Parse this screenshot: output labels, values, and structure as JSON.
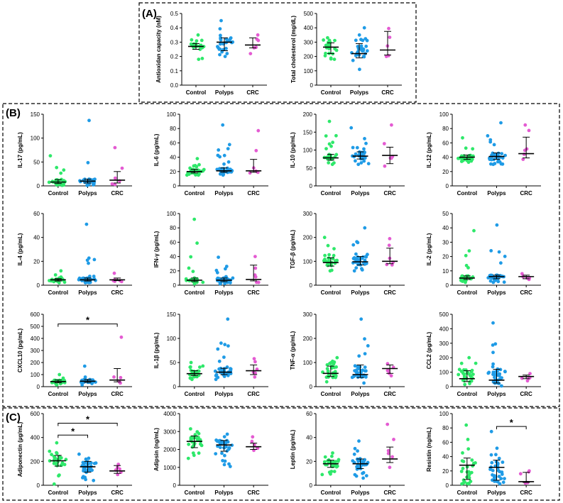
{
  "panels": [
    {
      "id": "A",
      "label": "(A)"
    },
    {
      "id": "B",
      "label": "(B)"
    },
    {
      "id": "C",
      "label": "(C)"
    }
  ],
  "colors": {
    "Control": "#2ee86a",
    "Polyps": "#1f9be6",
    "CRC": "#e45bd2"
  },
  "chart_data": [
    {
      "type": "scatter",
      "panel": "A",
      "ylabel": "Antioxidan capacity (nM)",
      "categories": [
        "Control",
        "Polyps",
        "CRC"
      ],
      "ylim": [
        0,
        0.5
      ],
      "yticks": [
        "0.0",
        "0.1",
        "0.2",
        "0.3",
        "0.4",
        "0.5"
      ],
      "median": [
        0.27,
        0.3,
        0.28
      ],
      "q1": [
        0.25,
        0.24,
        0.26
      ],
      "q3": [
        0.29,
        0.33,
        0.33
      ],
      "min": [
        0.18,
        0.2,
        0.22
      ],
      "max": [
        0.35,
        0.45,
        0.35
      ],
      "n": [
        22,
        26,
        6
      ],
      "significance": []
    },
    {
      "type": "scatter",
      "panel": "A",
      "ylabel": "Total cholesterol (mg/dL)",
      "categories": [
        "Control",
        "Polyps",
        "CRC"
      ],
      "ylim": [
        0,
        500
      ],
      "yticks": [
        "0",
        "100",
        "200",
        "300",
        "400",
        "500"
      ],
      "median": [
        265,
        220,
        245
      ],
      "q1": [
        220,
        190,
        210
      ],
      "q3": [
        295,
        290,
        375
      ],
      "min": [
        180,
        110,
        200
      ],
      "max": [
        330,
        400,
        395
      ],
      "n": [
        22,
        30,
        5
      ],
      "significance": []
    },
    {
      "type": "scatter",
      "panel": "B",
      "ylabel": "IL-17 (pg/mL)",
      "categories": [
        "Control",
        "Polyps",
        "CRC"
      ],
      "ylim": [
        0,
        150
      ],
      "yticks": [
        "0",
        "50",
        "100",
        "150"
      ],
      "median": [
        8,
        10,
        12
      ],
      "q1": [
        5,
        6,
        6
      ],
      "q3": [
        13,
        14,
        30
      ],
      "min": [
        1,
        1,
        3
      ],
      "max": [
        63,
        137,
        80
      ],
      "n": [
        28,
        36,
        6
      ],
      "significance": []
    },
    {
      "type": "scatter",
      "panel": "B",
      "ylabel": "IL-6 (pg/mL)",
      "categories": [
        "Control",
        "Polyps",
        "CRC"
      ],
      "ylim": [
        0,
        100
      ],
      "yticks": [
        "0",
        "20",
        "40",
        "60",
        "80",
        "100"
      ],
      "median": [
        20,
        21,
        21
      ],
      "q1": [
        18,
        19,
        19
      ],
      "q3": [
        23,
        25,
        37
      ],
      "min": [
        15,
        15,
        18
      ],
      "max": [
        38,
        85,
        77
      ],
      "n": [
        28,
        36,
        6
      ],
      "significance": []
    },
    {
      "type": "scatter",
      "panel": "B",
      "ylabel": "IL-10 (pg/mL)",
      "categories": [
        "Control",
        "Polyps",
        "CRC"
      ],
      "ylim": [
        0,
        200
      ],
      "yticks": [
        "0",
        "50",
        "100",
        "150",
        "200"
      ],
      "median": [
        78,
        83,
        85
      ],
      "q1": [
        72,
        75,
        62
      ],
      "q3": [
        88,
        95,
        108
      ],
      "min": [
        60,
        60,
        55
      ],
      "max": [
        180,
        162,
        170
      ],
      "n": [
        28,
        36,
        6
      ],
      "significance": []
    },
    {
      "type": "scatter",
      "panel": "B",
      "ylabel": "IL-12 (pg/mL)",
      "categories": [
        "Control",
        "Polyps",
        "CRC"
      ],
      "ylim": [
        0,
        100
      ],
      "yticks": [
        "0",
        "20",
        "40",
        "60",
        "80",
        "100"
      ],
      "median": [
        40,
        41,
        45
      ],
      "q1": [
        37,
        37,
        39
      ],
      "q3": [
        43,
        46,
        68
      ],
      "min": [
        33,
        30,
        37
      ],
      "max": [
        67,
        88,
        85
      ],
      "n": [
        28,
        36,
        6
      ],
      "significance": []
    },
    {
      "type": "scatter",
      "panel": "B",
      "ylabel": "IL-4 (pg/mL)",
      "categories": [
        "Control",
        "Polyps",
        "CRC"
      ],
      "ylim": [
        0,
        60
      ],
      "yticks": [
        "0",
        "20",
        "40",
        "60"
      ],
      "median": [
        4.5,
        4.5,
        4.5
      ],
      "q1": [
        3.5,
        3.5,
        3.8
      ],
      "q3": [
        5.5,
        6,
        6
      ],
      "min": [
        2,
        2,
        3
      ],
      "max": [
        12,
        51,
        10
      ],
      "n": [
        28,
        36,
        6
      ],
      "significance": []
    },
    {
      "type": "scatter",
      "panel": "B",
      "ylabel": "IFN-γ (pg/mL)",
      "categories": [
        "Control",
        "Polyps",
        "CRC"
      ],
      "ylim": [
        0,
        100
      ],
      "yticks": [
        "0",
        "20",
        "40",
        "60",
        "80",
        "100"
      ],
      "median": [
        7,
        7,
        8
      ],
      "q1": [
        5,
        5,
        6
      ],
      "q3": [
        10,
        10,
        28
      ],
      "min": [
        2,
        2,
        4
      ],
      "max": [
        92,
        39,
        40
      ],
      "n": [
        28,
        36,
        6
      ],
      "significance": []
    },
    {
      "type": "scatter",
      "panel": "B",
      "ylabel": "TGF-β (pg/mL)",
      "categories": [
        "Control",
        "Polyps",
        "CRC"
      ],
      "ylim": [
        0,
        300
      ],
      "yticks": [
        "0",
        "100",
        "200",
        "300"
      ],
      "median": [
        95,
        98,
        100
      ],
      "q1": [
        80,
        85,
        90
      ],
      "q3": [
        115,
        120,
        155
      ],
      "min": [
        60,
        60,
        85
      ],
      "max": [
        200,
        240,
        195
      ],
      "n": [
        28,
        36,
        6
      ],
      "significance": []
    },
    {
      "type": "scatter",
      "panel": "B",
      "ylabel": "IL-2 (pg/mL)",
      "categories": [
        "Control",
        "Polyps",
        "CRC"
      ],
      "ylim": [
        0,
        50
      ],
      "yticks": [
        "0",
        "10",
        "20",
        "30",
        "40",
        "50"
      ],
      "median": [
        5,
        6,
        6
      ],
      "q1": [
        4,
        4.5,
        4.5
      ],
      "q3": [
        6.5,
        7,
        7
      ],
      "min": [
        2,
        2,
        4
      ],
      "max": [
        38,
        42,
        8
      ],
      "n": [
        28,
        36,
        6
      ],
      "significance": []
    },
    {
      "type": "scatter",
      "panel": "B",
      "ylabel": "CXCL10 (pg/mL)",
      "categories": [
        "Control",
        "Polyps",
        "CRC"
      ],
      "ylim": [
        0,
        600
      ],
      "yticks": [
        "0",
        "100",
        "200",
        "300",
        "400",
        "500",
        "600"
      ],
      "median": [
        42,
        45,
        55
      ],
      "q1": [
        32,
        35,
        40
      ],
      "q3": [
        55,
        60,
        150
      ],
      "min": [
        15,
        15,
        30
      ],
      "max": [
        100,
        170,
        410
      ],
      "n": [
        28,
        36,
        6
      ],
      "significance": [
        {
          "from": 0,
          "to": 2,
          "y": 520,
          "label": "*"
        }
      ]
    },
    {
      "type": "scatter",
      "panel": "B",
      "ylabel": "IL-1β (pg/mL)",
      "categories": [
        "Control",
        "Polyps",
        "CRC"
      ],
      "ylim": [
        0,
        150
      ],
      "yticks": [
        "0",
        "50",
        "100",
        "150"
      ],
      "median": [
        27,
        30,
        33
      ],
      "q1": [
        23,
        25,
        25
      ],
      "q3": [
        33,
        38,
        45
      ],
      "min": [
        15,
        15,
        20
      ],
      "max": [
        50,
        140,
        58
      ],
      "n": [
        28,
        36,
        6
      ],
      "significance": []
    },
    {
      "type": "scatter",
      "panel": "B",
      "ylabel": "TNF-α (pg/mL)",
      "categories": [
        "Control",
        "Polyps",
        "CRC"
      ],
      "ylim": [
        0,
        300
      ],
      "yticks": [
        "0",
        "100",
        "200",
        "300"
      ],
      "median": [
        55,
        50,
        75
      ],
      "q1": [
        42,
        38,
        55
      ],
      "q3": [
        85,
        90,
        90
      ],
      "min": [
        20,
        15,
        45
      ],
      "max": [
        120,
        280,
        95
      ],
      "n": [
        28,
        36,
        6
      ],
      "significance": []
    },
    {
      "type": "scatter",
      "panel": "B",
      "ylabel": "CCL2 (pg/mL)",
      "categories": [
        "Control",
        "Polyps",
        "CRC"
      ],
      "ylim": [
        0,
        500
      ],
      "yticks": [
        "0",
        "100",
        "200",
        "300",
        "400",
        "500"
      ],
      "median": [
        55,
        45,
        70
      ],
      "q1": [
        35,
        25,
        55
      ],
      "q3": [
        110,
        120,
        80
      ],
      "min": [
        15,
        5,
        40
      ],
      "max": [
        200,
        440,
        90
      ],
      "n": [
        28,
        36,
        6
      ],
      "significance": []
    },
    {
      "type": "scatter",
      "panel": "C",
      "ylabel": "Adiponectin (µg/mL)",
      "categories": [
        "Control",
        "Polyps",
        "CRC"
      ],
      "ylim": [
        0,
        600
      ],
      "yticks": [
        "0",
        "200",
        "400",
        "600"
      ],
      "median": [
        205,
        155,
        120
      ],
      "q1": [
        160,
        110,
        100
      ],
      "q3": [
        250,
        200,
        165
      ],
      "min": [
        10,
        40,
        90
      ],
      "max": [
        355,
        260,
        175
      ],
      "n": [
        28,
        36,
        6
      ],
      "significance": [
        {
          "from": 0,
          "to": 1,
          "y": 420,
          "label": "*"
        },
        {
          "from": 0,
          "to": 2,
          "y": 520,
          "label": "*"
        }
      ]
    },
    {
      "type": "scatter",
      "panel": "C",
      "ylabel": "Adipsin (ng/mL)",
      "categories": [
        "Control",
        "Polyps",
        "CRC"
      ],
      "ylim": [
        0,
        4000
      ],
      "yticks": [
        "0",
        "1000",
        "2000",
        "3000",
        "4000"
      ],
      "median": [
        2450,
        2250,
        2150
      ],
      "q1": [
        2100,
        1900,
        2000
      ],
      "q3": [
        2750,
        2500,
        2350
      ],
      "min": [
        1500,
        1050,
        1950
      ],
      "max": [
        3150,
        2850,
        2700
      ],
      "n": [
        28,
        36,
        6
      ],
      "significance": []
    },
    {
      "type": "scatter",
      "panel": "C",
      "ylabel": "Leptin (pg/mL)",
      "categories": [
        "Control",
        "Polyps",
        "CRC"
      ],
      "ylim": [
        0,
        60
      ],
      "yticks": [
        "0",
        "20",
        "40",
        "60"
      ],
      "median": [
        18,
        18,
        22
      ],
      "q1": [
        15,
        14,
        19
      ],
      "q3": [
        21,
        22,
        32
      ],
      "min": [
        9,
        6,
        15
      ],
      "max": [
        27,
        37,
        51
      ],
      "n": [
        28,
        36,
        6
      ],
      "significance": []
    },
    {
      "type": "scatter",
      "panel": "C",
      "ylabel": "Resistin (ng/mL)",
      "categories": [
        "Control",
        "Polyps",
        "CRC"
      ],
      "ylim": [
        0,
        100
      ],
      "yticks": [
        "0",
        "20",
        "40",
        "60",
        "80",
        "100"
      ],
      "median": [
        28,
        25,
        5
      ],
      "q1": [
        8,
        7,
        4
      ],
      "q3": [
        38,
        35,
        18
      ],
      "min": [
        2,
        2,
        3
      ],
      "max": [
        84,
        75,
        20
      ],
      "n": [
        28,
        36,
        6
      ],
      "significance": [
        {
          "from": 1,
          "to": 2,
          "y": 82,
          "label": "*"
        }
      ]
    }
  ]
}
